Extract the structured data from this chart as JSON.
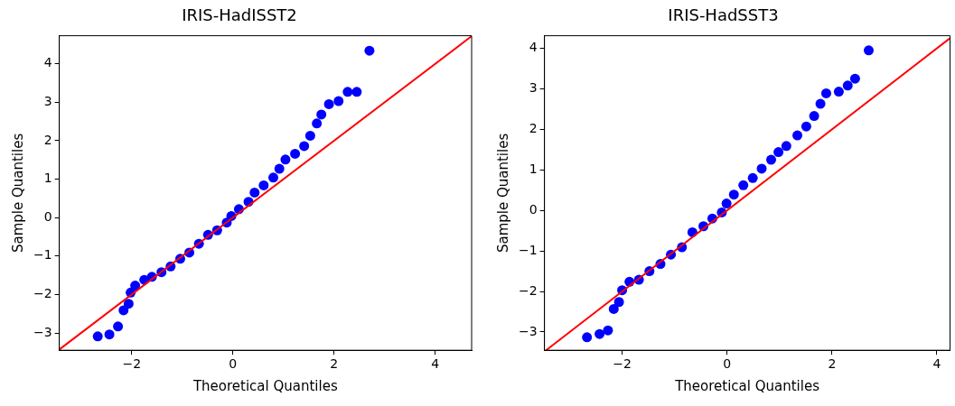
{
  "chart_data": [
    {
      "type": "scatter",
      "title": "IRIS-HadISST2",
      "xlabel": "Theoretical Quantiles",
      "ylabel": "Sample Quantiles",
      "xlim": [
        -3.43,
        4.72
      ],
      "ylim": [
        -3.45,
        4.73
      ],
      "xticks": [
        -2,
        0,
        2,
        4
      ],
      "yticks": [
        -3,
        -2,
        -1,
        0,
        1,
        2,
        3,
        4
      ],
      "grid": false,
      "legend": false,
      "series": [
        {
          "marker": "circle",
          "color": "#0000ff",
          "x": [
            -2.67,
            -2.44,
            -2.27,
            -2.16,
            -2.06,
            -2.02,
            -1.93,
            -1.75,
            -1.6,
            -1.41,
            -1.23,
            -1.04,
            -0.86,
            -0.67,
            -0.49,
            -0.31,
            -0.12,
            -0.03,
            0.12,
            0.31,
            0.43,
            0.61,
            0.8,
            0.92,
            1.04,
            1.23,
            1.41,
            1.53,
            1.66,
            1.75,
            1.9,
            2.09,
            2.27,
            2.45,
            2.7
          ],
          "values": [
            -3.09,
            -3.04,
            -2.83,
            -2.41,
            -2.24,
            -1.95,
            -1.77,
            -1.62,
            -1.54,
            -1.42,
            -1.27,
            -1.07,
            -0.91,
            -0.68,
            -0.45,
            -0.33,
            -0.13,
            0.04,
            0.22,
            0.41,
            0.65,
            0.84,
            1.04,
            1.27,
            1.51,
            1.66,
            1.86,
            2.13,
            2.45,
            2.68,
            2.95,
            3.03,
            3.27,
            3.27,
            4.34
          ]
        },
        {
          "type": "line",
          "color": "#ff0000",
          "x": [
            -3.43,
            4.72
          ],
          "values": [
            -3.43,
            4.72
          ]
        }
      ]
    },
    {
      "type": "scatter",
      "title": "IRIS-HadSST3",
      "xlabel": "Theoretical Quantiles",
      "ylabel": "Sample Quantiles",
      "xlim": [
        -3.48,
        4.25
      ],
      "ylim": [
        -3.45,
        4.31
      ],
      "xticks": [
        -2,
        0,
        2,
        4
      ],
      "yticks": [
        -3,
        -2,
        -1,
        0,
        1,
        2,
        3,
        4
      ],
      "grid": false,
      "legend": false,
      "series": [
        {
          "marker": "circle",
          "color": "#0000ff",
          "x": [
            -2.67,
            -2.43,
            -2.27,
            -2.16,
            -2.06,
            -2.0,
            -1.86,
            -1.68,
            -1.48,
            -1.27,
            -1.07,
            -0.86,
            -0.66,
            -0.45,
            -0.28,
            -0.1,
            -0.01,
            0.13,
            0.31,
            0.49,
            0.66,
            0.84,
            0.98,
            1.13,
            1.34,
            1.51,
            1.66,
            1.78,
            1.89,
            2.13,
            2.3,
            2.44,
            2.7
          ],
          "values": [
            -3.13,
            -3.05,
            -2.96,
            -2.43,
            -2.26,
            -1.97,
            -1.76,
            -1.71,
            -1.5,
            -1.32,
            -1.09,
            -0.91,
            -0.54,
            -0.39,
            -0.2,
            -0.05,
            0.17,
            0.39,
            0.62,
            0.8,
            1.03,
            1.25,
            1.44,
            1.59,
            1.85,
            2.07,
            2.33,
            2.63,
            2.89,
            2.93,
            3.08,
            3.25,
            3.95
          ]
        },
        {
          "type": "line",
          "color": "#ff0000",
          "x": [
            -3.45,
            4.25
          ],
          "values": [
            -3.45,
            4.25
          ]
        }
      ]
    }
  ]
}
